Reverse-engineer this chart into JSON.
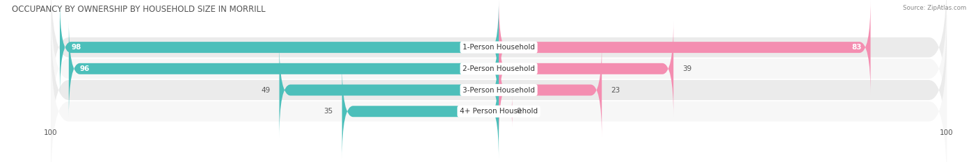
{
  "title": "OCCUPANCY BY OWNERSHIP BY HOUSEHOLD SIZE IN MORRILL",
  "source": "Source: ZipAtlas.com",
  "categories": [
    "1-Person Household",
    "2-Person Household",
    "3-Person Household",
    "4+ Person Household"
  ],
  "owner_values": [
    98,
    96,
    49,
    35
  ],
  "renter_values": [
    83,
    39,
    23,
    0
  ],
  "max_value": 100,
  "owner_color": "#4CBFBA",
  "renter_color": "#F48EB1",
  "row_bg_colors": [
    "#EBEBEB",
    "#F7F7F7"
  ],
  "title_fontsize": 8.5,
  "label_fontsize": 7.5,
  "value_fontsize": 7.5,
  "tick_fontsize": 7.5,
  "legend_fontsize": 7.5,
  "background_color": "#FFFFFF"
}
